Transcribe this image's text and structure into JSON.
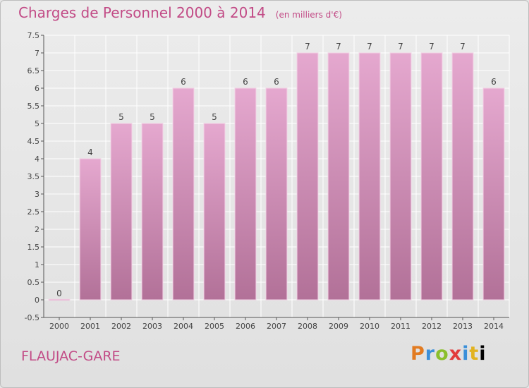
{
  "chart_data": {
    "type": "bar",
    "title": "Charges de Personnel 2000 à 2014",
    "subtitle": "(en milliers d'€)",
    "categories": [
      "2000",
      "2001",
      "2002",
      "2003",
      "2004",
      "2005",
      "2006",
      "2007",
      "2008",
      "2009",
      "2010",
      "2011",
      "2012",
      "2013",
      "2014"
    ],
    "values": [
      0,
      4,
      5,
      5,
      6,
      5,
      6,
      6,
      7,
      7,
      7,
      7,
      7,
      7,
      6
    ],
    "data_labels": [
      "0",
      "4",
      "5",
      "5",
      "6",
      "5",
      "6",
      "6",
      "7",
      "7",
      "7",
      "7",
      "7",
      "7",
      "6"
    ],
    "ylim": [
      -0.5,
      7.5
    ],
    "yticks": [
      -0.5,
      0,
      0.5,
      1,
      1.5,
      2,
      2.5,
      3,
      3.5,
      4,
      4.5,
      5,
      5.5,
      6,
      6.5,
      7,
      7.5
    ],
    "ytick_labels": [
      "-0.5",
      "0",
      "0.5",
      "1",
      "1.5",
      "2",
      "2.5",
      "3",
      "3.5",
      "4",
      "4.5",
      "5",
      "5.5",
      "6",
      "6.5",
      "7",
      "7.5"
    ],
    "grid": true,
    "bar_color_top": "#e5a8cf",
    "bar_color_bottom": "#b27198"
  },
  "footer": {
    "location": "FLAUJAC-GARE",
    "logo_letters": [
      "P",
      "r",
      "o",
      "x",
      "i",
      "t",
      "i"
    ]
  }
}
